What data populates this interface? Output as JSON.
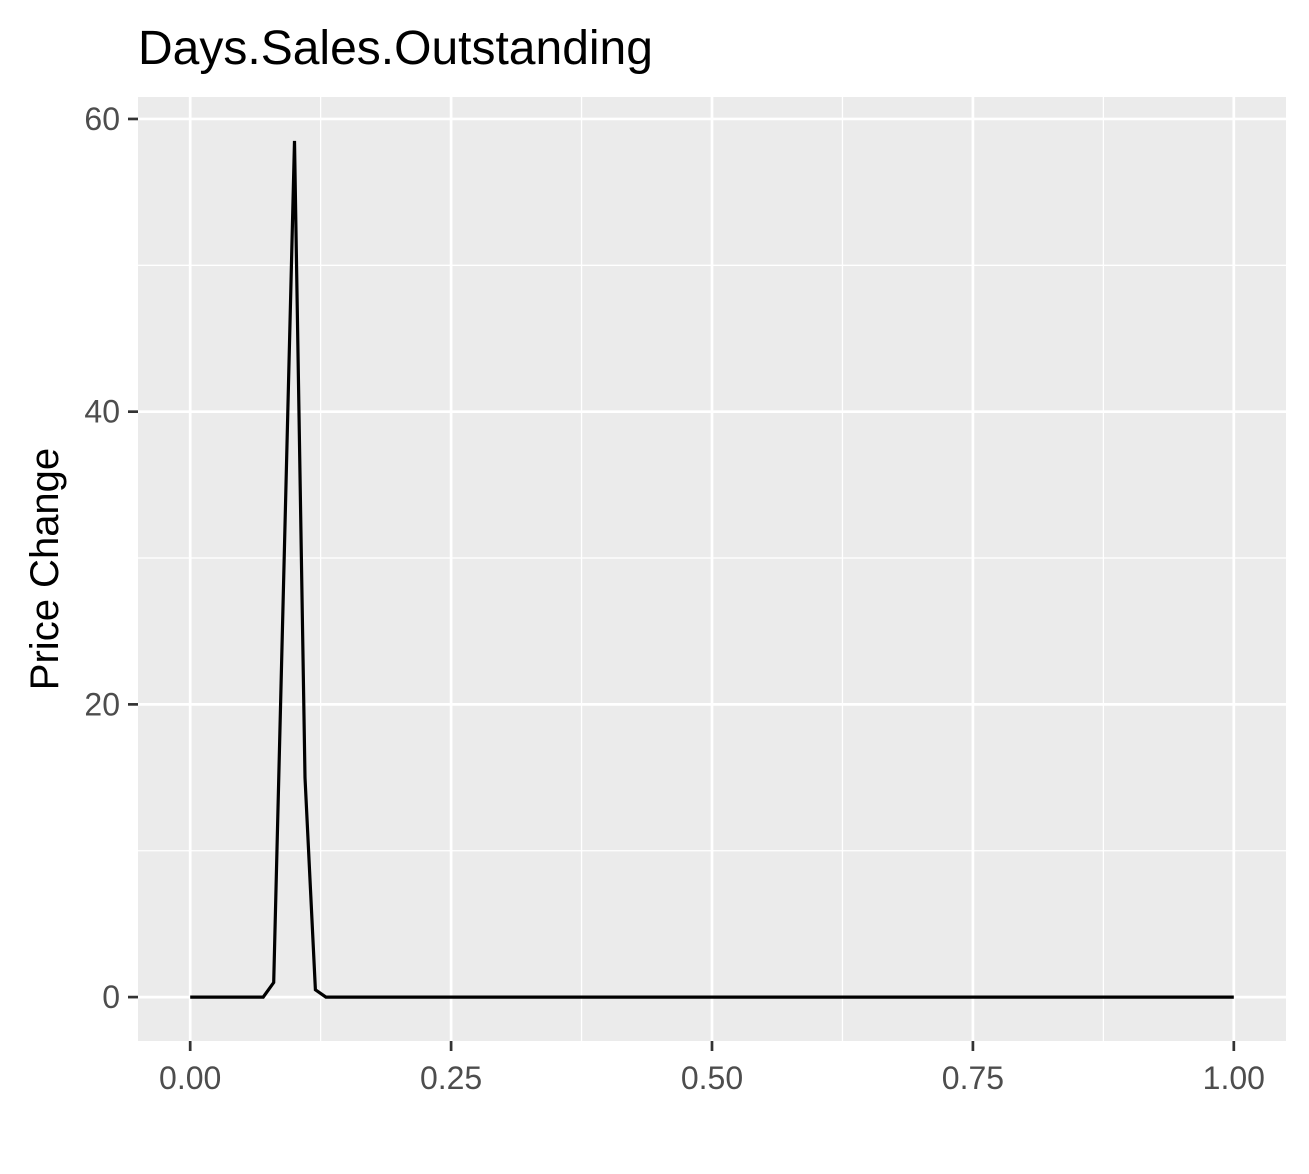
{
  "chart_data": {
    "type": "line",
    "title": "Days.Sales.Outstanding",
    "xlabel": "",
    "ylabel": "Price Change",
    "xlim": [
      -0.05,
      1.05
    ],
    "ylim": [
      -3,
      61.5
    ],
    "x_ticks": [
      0,
      0.25,
      0.5,
      0.75,
      1
    ],
    "x_tick_labels": [
      "0.00",
      "0.25",
      "0.50",
      "0.75",
      "1.00"
    ],
    "y_ticks": [
      0,
      20,
      40,
      60
    ],
    "y_tick_labels": [
      "0",
      "20",
      "40",
      "60"
    ],
    "grid": true,
    "panel_background": "#ebebeb",
    "grid_color": "#ffffff",
    "line_color": "#000000",
    "series": [
      {
        "x": [
          0,
          0.07,
          0.08,
          0.1,
          0.11,
          0.12,
          0.13,
          0.2,
          0.3,
          0.4,
          0.5,
          0.6,
          0.7,
          0.8,
          0.9,
          1.0
        ],
        "y": [
          0,
          0,
          1,
          58.5,
          15,
          0.5,
          0,
          0,
          0,
          0,
          0,
          0,
          0,
          0,
          0,
          0
        ]
      }
    ]
  }
}
